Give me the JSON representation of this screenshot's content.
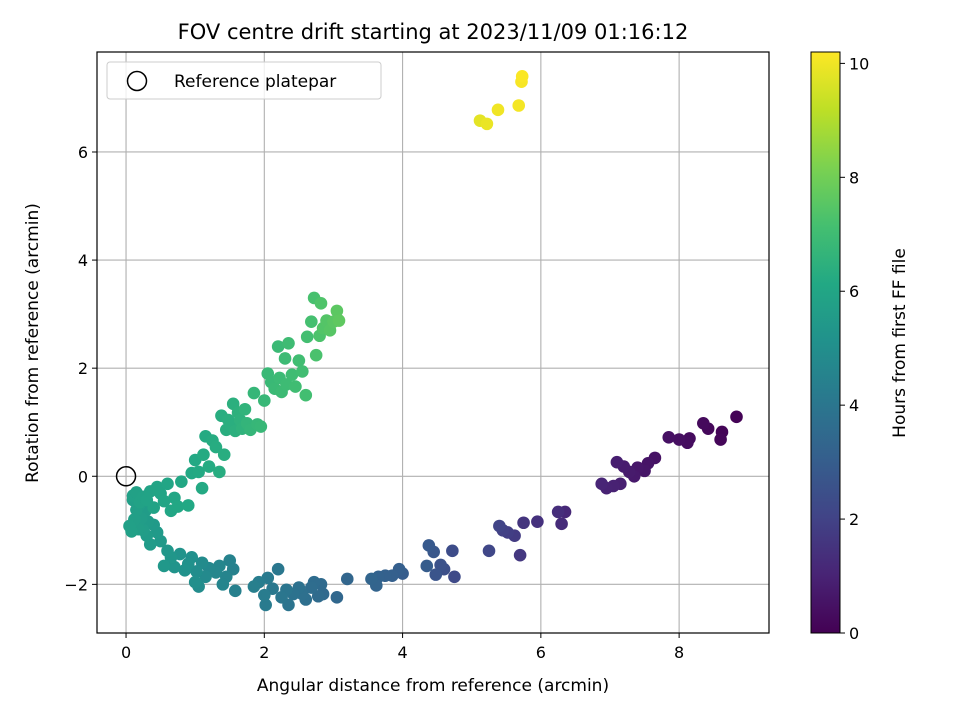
{
  "chart_data": {
    "type": "scatter",
    "title": "FOV centre drift starting at 2023/11/09 01:16:12",
    "xlabel": "Angular distance from reference (arcmin)",
    "ylabel": "Rotation from reference (arcmin)",
    "xlim": [
      -0.42,
      9.3
    ],
    "ylim": [
      -2.9,
      7.85
    ],
    "xticks": [
      0,
      2,
      4,
      6,
      8
    ],
    "yticks": [
      -2,
      0,
      2,
      4,
      6
    ],
    "xtick_labels": [
      "0",
      "2",
      "4",
      "6",
      "8"
    ],
    "ytick_labels": [
      "−2",
      "0",
      "2",
      "4",
      "6"
    ],
    "grid": true,
    "legend": {
      "placement": "top-left",
      "entries": [
        "Reference platepar"
      ]
    },
    "reference_point": {
      "x": 0,
      "y": 0
    },
    "colorbar": {
      "label": "Hours from first FF file",
      "colormap": "viridis",
      "range": [
        0,
        10.2
      ],
      "ticks": [
        0,
        2,
        4,
        6,
        8,
        10
      ],
      "tick_labels": [
        "0",
        "2",
        "4",
        "6",
        "8",
        "10"
      ]
    },
    "points": [
      [
        8.83,
        1.1,
        0.05
      ],
      [
        8.62,
        0.82,
        0.1
      ],
      [
        8.6,
        0.68,
        0.15
      ],
      [
        8.42,
        0.88,
        0.2
      ],
      [
        8.35,
        0.98,
        0.25
      ],
      [
        8.15,
        0.7,
        0.3
      ],
      [
        8.12,
        0.62,
        0.35
      ],
      [
        8.0,
        0.68,
        0.4
      ],
      [
        7.85,
        0.72,
        0.45
      ],
      [
        7.65,
        0.34,
        0.5
      ],
      [
        7.55,
        0.24,
        0.55
      ],
      [
        7.5,
        0.1,
        0.6
      ],
      [
        7.4,
        0.16,
        0.65
      ],
      [
        7.35,
        0.0,
        0.7
      ],
      [
        7.28,
        0.08,
        0.75
      ],
      [
        7.2,
        0.18,
        0.8
      ],
      [
        7.1,
        0.26,
        0.85
      ],
      [
        7.15,
        -0.14,
        0.9
      ],
      [
        7.05,
        -0.18,
        0.95
      ],
      [
        6.95,
        -0.22,
        1.0
      ],
      [
        6.88,
        -0.14,
        1.05
      ],
      [
        6.35,
        -0.66,
        1.15
      ],
      [
        6.3,
        -0.88,
        1.25
      ],
      [
        6.25,
        -0.66,
        1.35
      ],
      [
        5.95,
        -0.84,
        1.45
      ],
      [
        5.75,
        -0.86,
        1.55
      ],
      [
        5.7,
        -1.46,
        1.65
      ],
      [
        5.62,
        -1.1,
        1.75
      ],
      [
        5.52,
        -1.04,
        1.85
      ],
      [
        5.45,
        -1.0,
        1.95
      ],
      [
        5.4,
        -0.92,
        2.05
      ],
      [
        5.25,
        -1.38,
        2.15
      ],
      [
        4.75,
        -1.86,
        2.25
      ],
      [
        4.72,
        -1.38,
        2.35
      ],
      [
        4.6,
        -1.72,
        2.45
      ],
      [
        4.55,
        -1.64,
        2.55
      ],
      [
        4.48,
        -1.82,
        2.65
      ],
      [
        4.45,
        -1.4,
        2.75
      ],
      [
        4.38,
        -1.28,
        2.85
      ],
      [
        4.35,
        -1.66,
        2.95
      ],
      [
        4.0,
        -1.8,
        3.0
      ],
      [
        3.95,
        -1.72,
        3.05
      ],
      [
        3.85,
        -1.84,
        3.1
      ],
      [
        3.75,
        -1.84,
        3.15
      ],
      [
        3.65,
        -1.86,
        3.2
      ],
      [
        3.62,
        -2.02,
        3.25
      ],
      [
        3.55,
        -1.9,
        3.3
      ],
      [
        3.2,
        -1.9,
        3.35
      ],
      [
        3.05,
        -2.24,
        3.4
      ],
      [
        2.85,
        -2.18,
        3.45
      ],
      [
        2.82,
        -2.0,
        3.5
      ],
      [
        2.78,
        -2.22,
        3.55
      ],
      [
        2.72,
        -1.96,
        3.6
      ],
      [
        2.68,
        -2.06,
        3.65
      ],
      [
        2.6,
        -2.28,
        3.7
      ],
      [
        2.55,
        -2.18,
        3.75
      ],
      [
        2.5,
        -2.06,
        3.8
      ],
      [
        2.42,
        -2.18,
        3.85
      ],
      [
        2.35,
        -2.38,
        3.9
      ],
      [
        2.32,
        -2.1,
        3.95
      ],
      [
        2.25,
        -2.24,
        4.0
      ],
      [
        2.2,
        -1.72,
        4.05
      ],
      [
        2.12,
        -2.08,
        4.1
      ],
      [
        2.05,
        -1.88,
        4.15
      ],
      [
        2.02,
        -2.38,
        4.2
      ],
      [
        2.0,
        -2.2,
        4.25
      ],
      [
        1.92,
        -1.96,
        4.3
      ],
      [
        1.85,
        -2.04,
        4.35
      ],
      [
        1.58,
        -2.12,
        4.4
      ],
      [
        1.55,
        -1.72,
        4.45
      ],
      [
        1.5,
        -1.56,
        4.5
      ],
      [
        1.45,
        -1.86,
        4.55
      ],
      [
        1.4,
        -2.0,
        4.6
      ],
      [
        1.35,
        -1.66,
        4.65
      ],
      [
        1.3,
        -1.78,
        4.7
      ],
      [
        1.2,
        -1.7,
        4.75
      ],
      [
        1.15,
        -1.86,
        4.8
      ],
      [
        1.1,
        -1.6,
        4.85
      ],
      [
        1.05,
        -2.04,
        4.9
      ],
      [
        1.02,
        -1.76,
        4.95
      ],
      [
        1.0,
        -1.96,
        5.0
      ],
      [
        0.95,
        -1.5,
        5.05
      ],
      [
        0.9,
        -1.62,
        5.1
      ],
      [
        0.85,
        -1.74,
        5.15
      ],
      [
        0.78,
        -1.44,
        5.2
      ],
      [
        0.7,
        -1.68,
        5.25
      ],
      [
        0.65,
        -1.5,
        5.3
      ],
      [
        0.6,
        -1.38,
        5.35
      ],
      [
        0.55,
        -1.66,
        5.4
      ],
      [
        0.5,
        -1.2,
        5.45
      ],
      [
        0.45,
        -1.04,
        5.5
      ],
      [
        0.4,
        -0.9,
        5.52
      ],
      [
        0.35,
        -1.26,
        5.54
      ],
      [
        0.32,
        -0.84,
        5.56
      ],
      [
        0.3,
        -1.1,
        5.58
      ],
      [
        0.28,
        -0.64,
        5.6
      ],
      [
        0.25,
        -1.0,
        5.62
      ],
      [
        0.22,
        -0.78,
        5.64
      ],
      [
        0.2,
        -0.52,
        5.66
      ],
      [
        0.18,
        -0.98,
        5.68
      ],
      [
        0.15,
        -0.62,
        5.7
      ],
      [
        0.12,
        -0.8,
        5.72
      ],
      [
        0.1,
        -0.44,
        5.74
      ],
      [
        0.08,
        -1.02,
        5.76
      ],
      [
        0.05,
        -0.92,
        5.78
      ],
      [
        0.1,
        -0.36,
        5.8
      ],
      [
        0.15,
        -0.3,
        5.82
      ],
      [
        0.2,
        -0.48,
        5.84
      ],
      [
        0.25,
        -0.38,
        5.86
      ],
      [
        0.3,
        -0.44,
        5.88
      ],
      [
        0.35,
        -0.28,
        5.9
      ],
      [
        0.4,
        -0.58,
        5.92
      ],
      [
        0.45,
        -0.2,
        5.94
      ],
      [
        0.5,
        -0.32,
        5.96
      ],
      [
        0.55,
        -0.46,
        5.98
      ],
      [
        0.6,
        -0.14,
        6.0
      ],
      [
        0.65,
        -0.64,
        6.02
      ],
      [
        0.7,
        -0.4,
        6.04
      ],
      [
        0.75,
        -0.56,
        6.06
      ],
      [
        0.8,
        -0.1,
        6.08
      ],
      [
        0.9,
        -0.54,
        6.1
      ],
      [
        0.95,
        0.06,
        6.12
      ],
      [
        1.0,
        0.3,
        6.14
      ],
      [
        1.05,
        0.08,
        6.16
      ],
      [
        1.1,
        -0.22,
        6.18
      ],
      [
        1.12,
        0.4,
        6.2
      ],
      [
        1.15,
        0.74,
        6.22
      ],
      [
        1.2,
        0.18,
        6.24
      ],
      [
        1.25,
        0.66,
        6.26
      ],
      [
        1.3,
        0.54,
        6.28
      ],
      [
        1.35,
        0.08,
        6.3
      ],
      [
        1.38,
        1.12,
        6.32
      ],
      [
        1.42,
        0.4,
        6.34
      ],
      [
        1.45,
        0.86,
        6.36
      ],
      [
        1.48,
        1.04,
        6.38
      ],
      [
        1.52,
        0.94,
        6.4
      ],
      [
        1.55,
        1.34,
        6.42
      ],
      [
        1.58,
        0.84,
        6.45
      ],
      [
        1.62,
        1.18,
        6.48
      ],
      [
        1.65,
        1.04,
        6.5
      ],
      [
        1.68,
        0.88,
        6.55
      ],
      [
        1.72,
        1.24,
        6.6
      ],
      [
        1.75,
        0.98,
        6.65
      ],
      [
        1.8,
        0.86,
        6.7
      ],
      [
        1.85,
        1.54,
        6.72
      ],
      [
        1.9,
        0.96,
        6.75
      ],
      [
        1.95,
        0.92,
        6.78
      ],
      [
        2.0,
        1.4,
        6.8
      ],
      [
        2.05,
        1.9,
        6.82
      ],
      [
        2.1,
        1.74,
        6.84
      ],
      [
        2.15,
        1.62,
        6.86
      ],
      [
        2.2,
        2.4,
        6.88
      ],
      [
        2.22,
        1.82,
        6.9
      ],
      [
        2.25,
        1.56,
        6.92
      ],
      [
        2.3,
        2.18,
        6.94
      ],
      [
        2.32,
        1.7,
        6.96
      ],
      [
        2.35,
        2.46,
        6.98
      ],
      [
        2.4,
        1.88,
        7.0
      ],
      [
        2.45,
        1.66,
        7.02
      ],
      [
        2.5,
        2.14,
        7.04
      ],
      [
        2.55,
        1.94,
        7.06
      ],
      [
        2.6,
        1.5,
        7.08
      ],
      [
        2.62,
        2.58,
        7.1
      ],
      [
        2.68,
        2.86,
        7.15
      ],
      [
        2.72,
        3.3,
        7.2
      ],
      [
        2.75,
        2.24,
        7.25
      ],
      [
        2.8,
        2.6,
        7.3
      ],
      [
        2.82,
        3.2,
        7.35
      ],
      [
        2.85,
        2.74,
        7.4
      ],
      [
        2.9,
        2.88,
        7.45
      ],
      [
        2.95,
        2.7,
        7.5
      ],
      [
        3.0,
        2.86,
        7.55
      ],
      [
        3.05,
        3.06,
        7.6
      ],
      [
        3.08,
        2.88,
        7.65
      ],
      [
        5.12,
        6.58,
        9.8
      ],
      [
        5.22,
        6.52,
        9.9
      ],
      [
        5.38,
        6.78,
        10.0
      ],
      [
        5.68,
        6.86,
        10.05
      ],
      [
        5.72,
        7.3,
        10.1
      ],
      [
        5.73,
        7.4,
        10.15
      ]
    ]
  }
}
